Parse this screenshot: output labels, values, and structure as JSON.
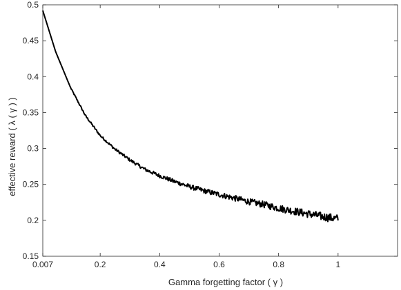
{
  "chart_data": {
    "type": "line",
    "title": "",
    "xlabel": "Gamma forgetting factor ( γ )",
    "ylabel": "effective reward ( λ ( γ ) )",
    "xlim": [
      0.007,
      1.2
    ],
    "ylim": [
      0.15,
      0.5
    ],
    "x_ticks": [
      0.007,
      0.2,
      0.4,
      0.6,
      0.8,
      1
    ],
    "x_tick_labels": [
      "0.007",
      "0.2",
      "0.4",
      "0.6",
      "0.8",
      "1"
    ],
    "y_ticks": [
      0.15,
      0.2,
      0.25,
      0.3,
      0.35,
      0.4,
      0.45,
      0.5
    ],
    "y_tick_labels": [
      "0.15",
      "0.2",
      "0.25",
      "0.3",
      "0.35",
      "0.4",
      "0.45",
      "0.5"
    ],
    "grid": false,
    "legend": "none",
    "series": [
      {
        "color": "#000000",
        "noisy": true,
        "x": [
          0.007,
          0.05,
          0.1,
          0.15,
          0.2,
          0.25,
          0.3,
          0.35,
          0.4,
          0.45,
          0.5,
          0.55,
          0.6,
          0.65,
          0.7,
          0.75,
          0.8,
          0.85,
          0.9,
          0.95,
          1.0
        ],
        "y": [
          0.492,
          0.435,
          0.385,
          0.346,
          0.318,
          0.299,
          0.284,
          0.271,
          0.262,
          0.254,
          0.247,
          0.241,
          0.236,
          0.231,
          0.226,
          0.222,
          0.217,
          0.213,
          0.209,
          0.205,
          0.202
        ]
      }
    ]
  }
}
